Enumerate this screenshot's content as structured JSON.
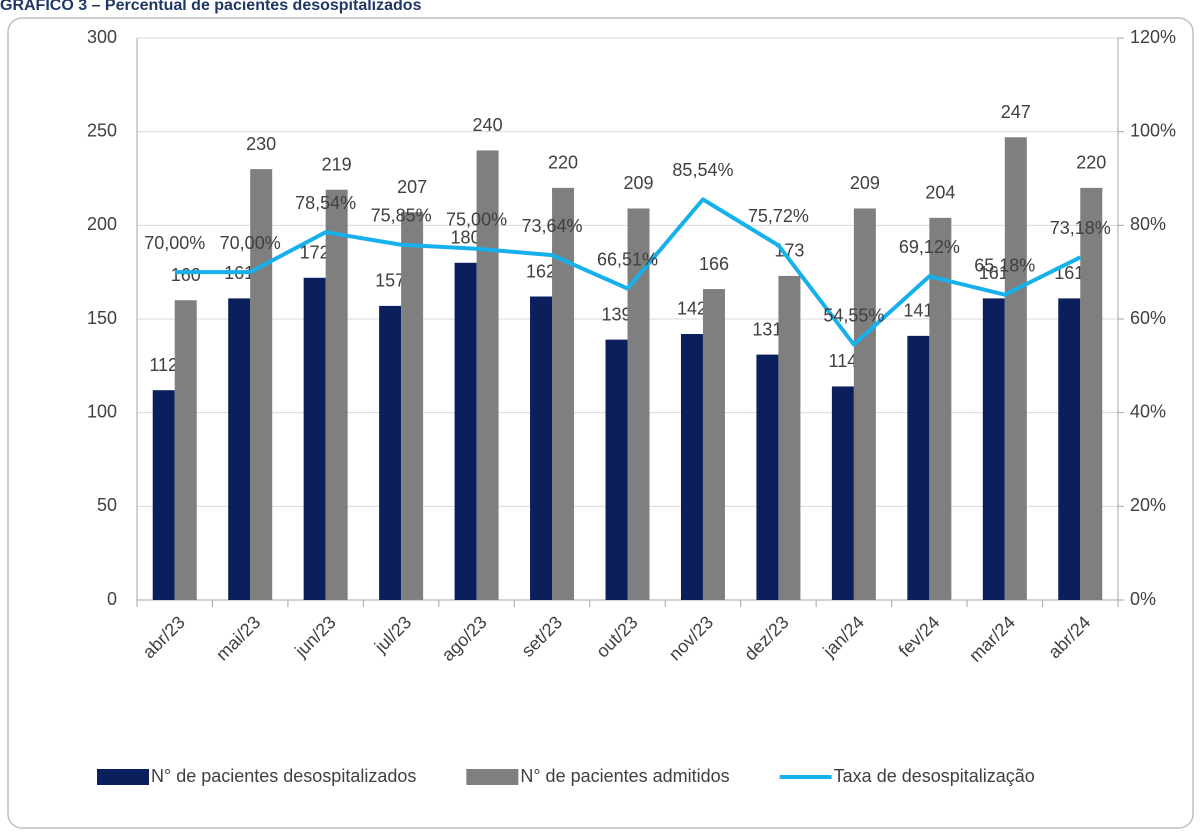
{
  "chart_data": {
    "type": "bar_line",
    "title": "GRÁFICO 3 – Percentual de pacientes desospitalizados",
    "categories": [
      "abr/23",
      "mai/23",
      "jun/23",
      "jul/23",
      "ago/23",
      "set/23",
      "out/23",
      "nov/23",
      "dez/23",
      "jan/24",
      "fev/24",
      "mar/24",
      "abr/24"
    ],
    "series": [
      {
        "name": "N° de pacientes desospitalizados",
        "type": "bar",
        "color": "#0b1f5c",
        "values": [
          112,
          161,
          172,
          157,
          180,
          162,
          139,
          142,
          131,
          114,
          141,
          161,
          161
        ]
      },
      {
        "name": "N° de pacientes admitidos",
        "type": "bar",
        "color": "#7f7f7f",
        "values": [
          160,
          230,
          219,
          207,
          240,
          220,
          209,
          166,
          173,
          209,
          204,
          247,
          220
        ]
      },
      {
        "name": "Taxa de desospitalização",
        "type": "line",
        "axis": "y2",
        "color": "#16b0ec",
        "values": [
          70.0,
          70.0,
          78.54,
          75.85,
          75.0,
          73.64,
          66.51,
          85.54,
          75.72,
          54.55,
          69.12,
          65.18,
          73.18
        ],
        "value_labels": [
          "70,00%",
          "70,00%",
          "78,54%",
          "75,85%",
          "75,00%",
          "73,64%",
          "66,51%",
          "85,54%",
          "75,72%",
          "54,55%",
          "69,12%",
          "65,18%",
          "73,18%"
        ]
      }
    ],
    "ylim": [
      0,
      300
    ],
    "yticks": [
      0,
      50,
      100,
      150,
      200,
      250,
      300
    ],
    "y2lim": [
      0,
      120
    ],
    "y2ticks": [
      {
        "value": 0,
        "label": "0%"
      },
      {
        "value": 20,
        "label": "20%"
      },
      {
        "value": 40,
        "label": "40%"
      },
      {
        "value": 60,
        "label": "60%"
      },
      {
        "value": 80,
        "label": "80%"
      },
      {
        "value": 100,
        "label": "100%"
      },
      {
        "value": 120,
        "label": "120%"
      }
    ],
    "grid": true,
    "legend": "bottom"
  }
}
